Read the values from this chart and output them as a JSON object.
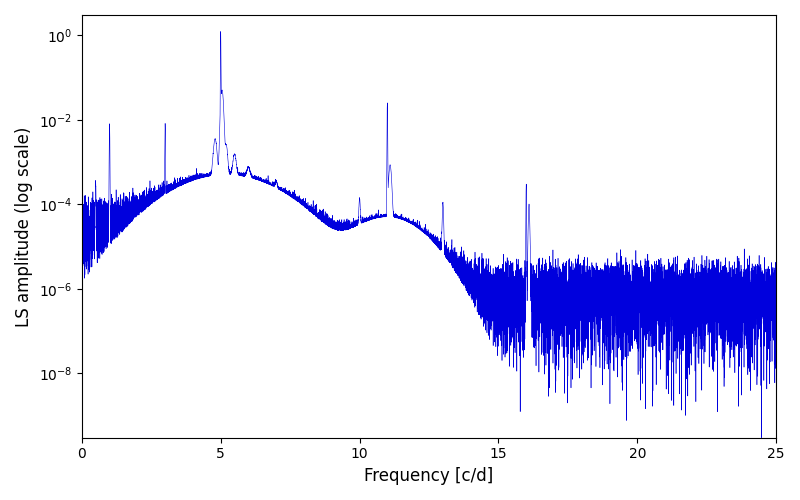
{
  "xlabel": "Frequency [c/d]",
  "ylabel": "LS amplitude (log scale)",
  "xlim": [
    0,
    25
  ],
  "color": "#0000dd",
  "linewidth": 0.4,
  "figsize": [
    8.0,
    5.0
  ],
  "dpi": 100,
  "seed": 1234,
  "n_points": 15000,
  "yticks": [
    1e-08,
    1e-06,
    0.0001,
    0.01,
    1.0
  ],
  "ylim": [
    3e-10,
    3.0
  ]
}
